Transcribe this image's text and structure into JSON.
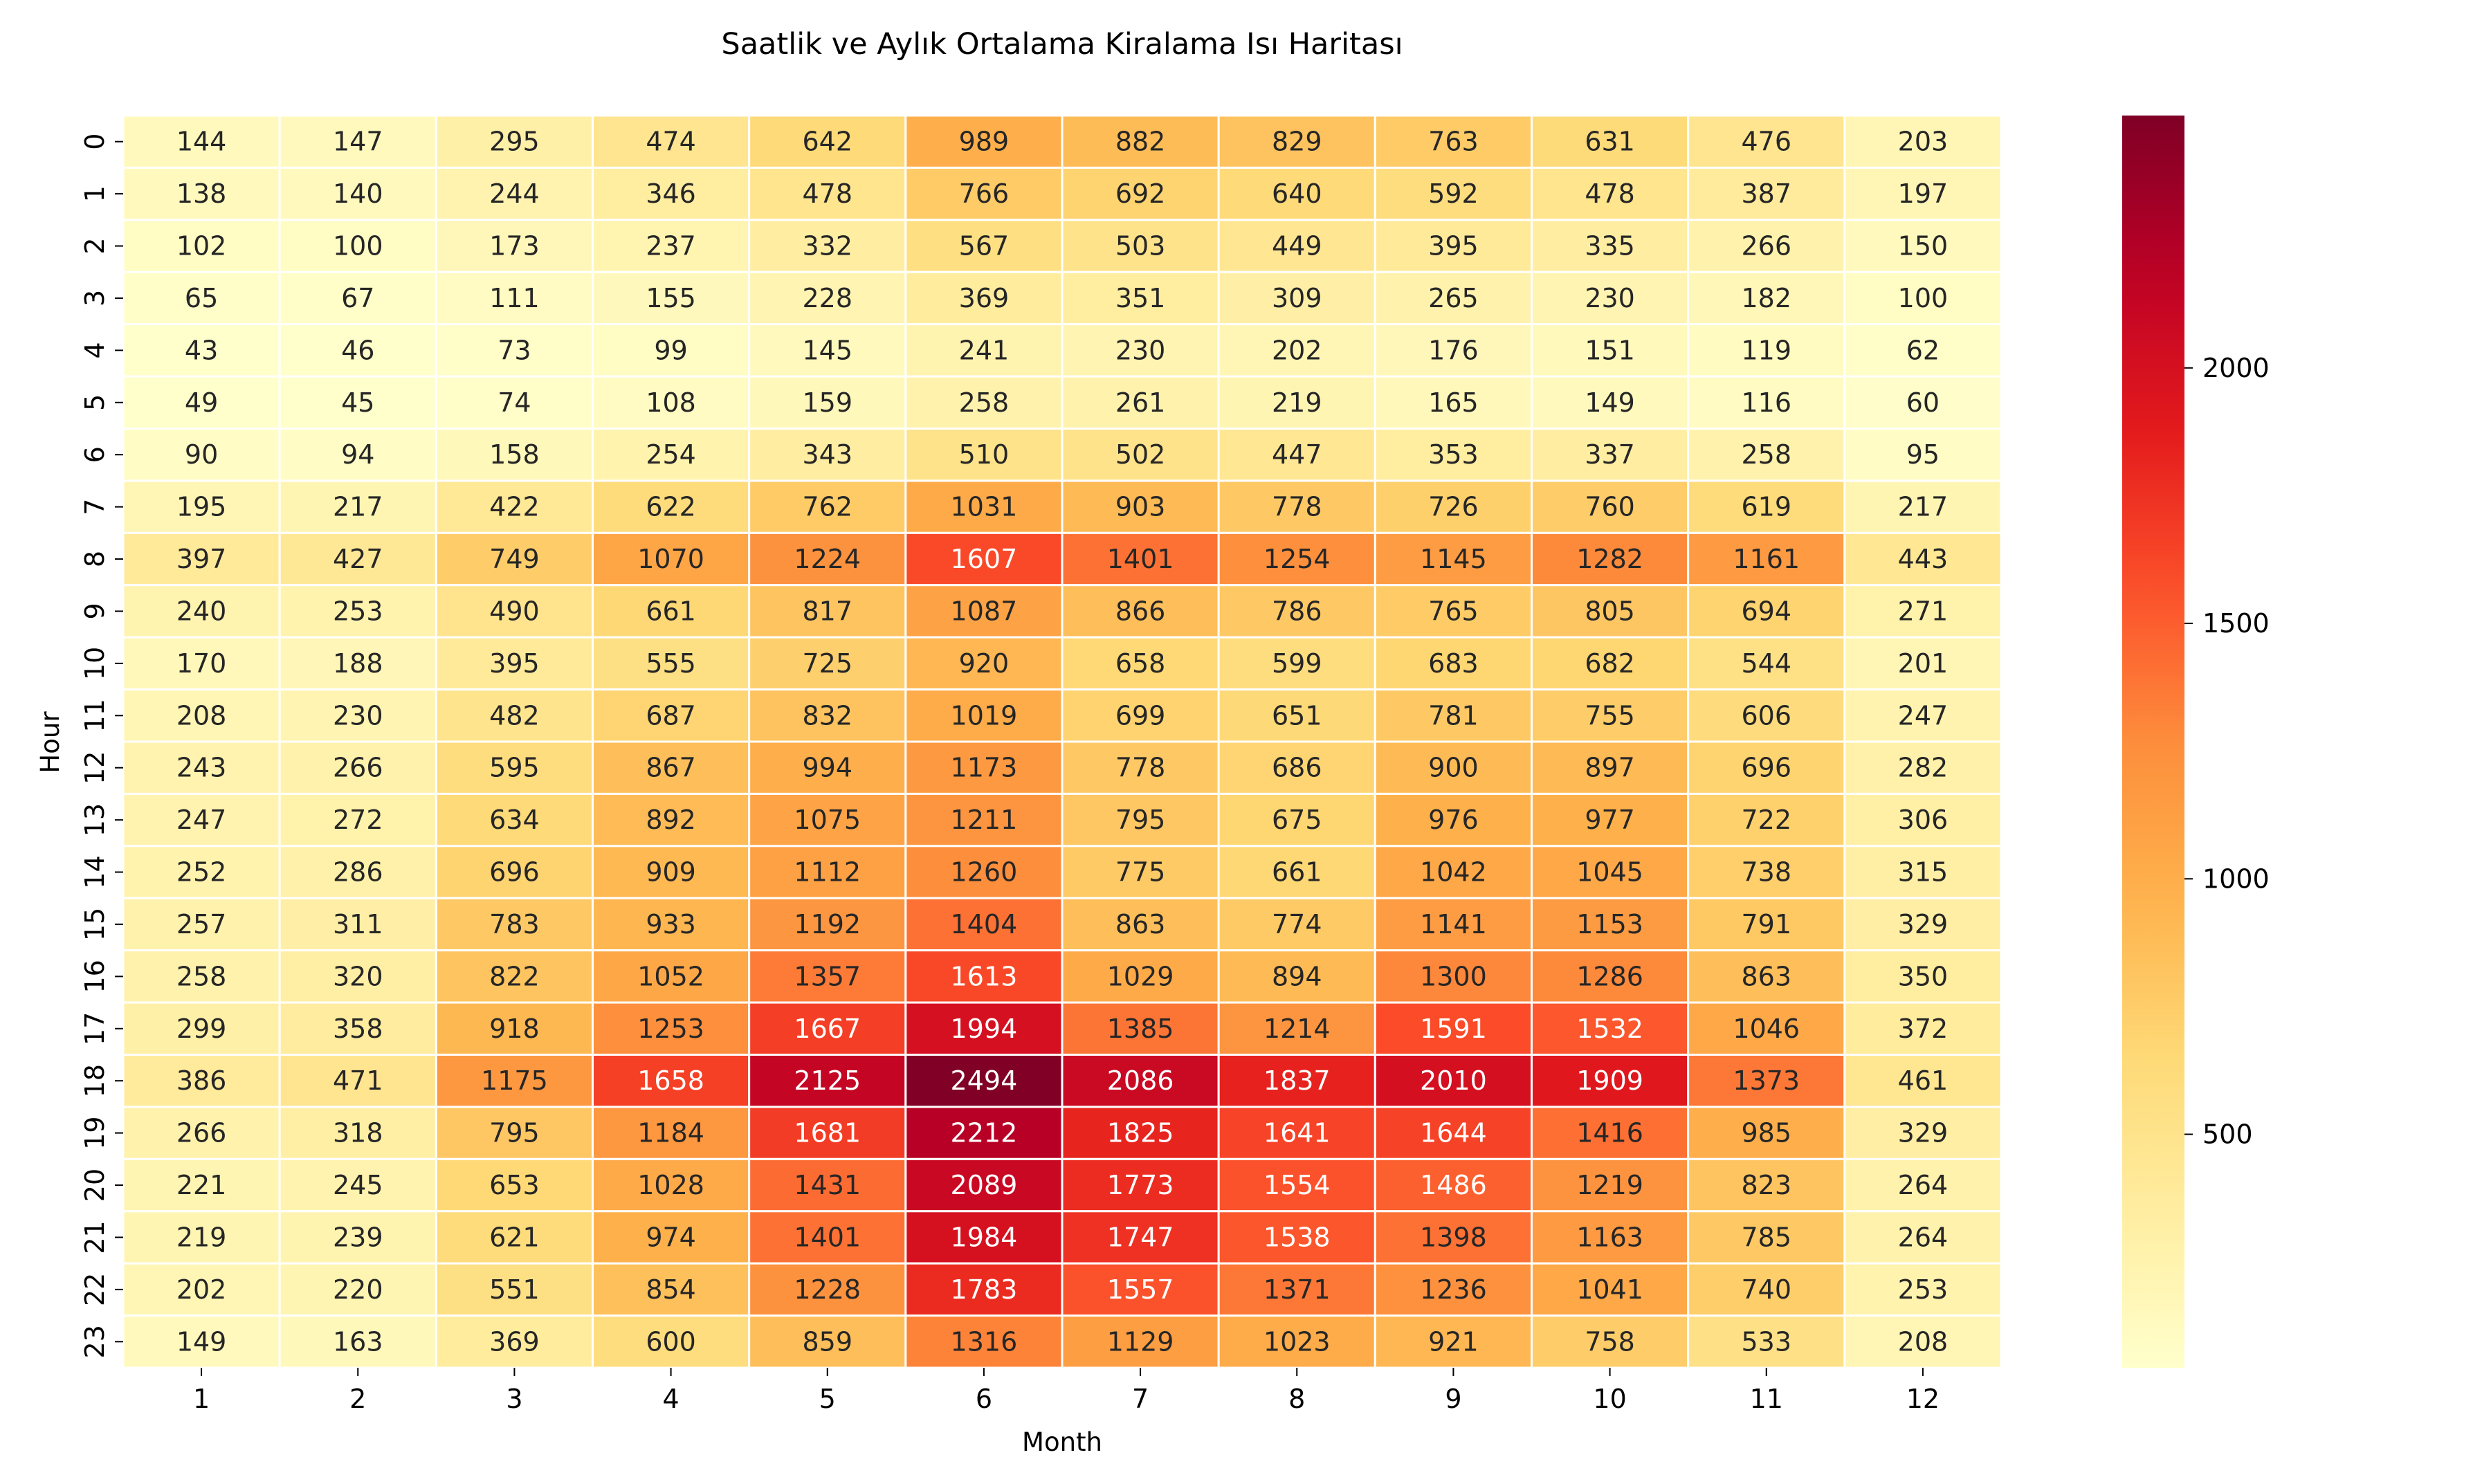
{
  "chart_data": {
    "type": "heatmap",
    "title": "Saatlik ve Aylık Ortalama Kiralama Isı Haritası",
    "xlabel": "Month",
    "ylabel": "Hour",
    "x_categories": [
      "1",
      "2",
      "3",
      "4",
      "5",
      "6",
      "7",
      "8",
      "9",
      "10",
      "11",
      "12"
    ],
    "y_categories": [
      "0",
      "1",
      "2",
      "3",
      "4",
      "5",
      "6",
      "7",
      "8",
      "9",
      "10",
      "11",
      "12",
      "13",
      "14",
      "15",
      "16",
      "17",
      "18",
      "19",
      "20",
      "21",
      "22",
      "23"
    ],
    "values": [
      [
        144,
        147,
        295,
        474,
        642,
        989,
        882,
        829,
        763,
        631,
        476,
        203
      ],
      [
        138,
        140,
        244,
        346,
        478,
        766,
        692,
        640,
        592,
        478,
        387,
        197
      ],
      [
        102,
        100,
        173,
        237,
        332,
        567,
        503,
        449,
        395,
        335,
        266,
        150
      ],
      [
        65,
        67,
        111,
        155,
        228,
        369,
        351,
        309,
        265,
        230,
        182,
        100
      ],
      [
        43,
        46,
        73,
        99,
        145,
        241,
        230,
        202,
        176,
        151,
        119,
        62
      ],
      [
        49,
        45,
        74,
        108,
        159,
        258,
        261,
        219,
        165,
        149,
        116,
        60
      ],
      [
        90,
        94,
        158,
        254,
        343,
        510,
        502,
        447,
        353,
        337,
        258,
        95
      ],
      [
        195,
        217,
        422,
        622,
        762,
        1031,
        903,
        778,
        726,
        760,
        619,
        217
      ],
      [
        397,
        427,
        749,
        1070,
        1224,
        1607,
        1401,
        1254,
        1145,
        1282,
        1161,
        443
      ],
      [
        240,
        253,
        490,
        661,
        817,
        1087,
        866,
        786,
        765,
        805,
        694,
        271
      ],
      [
        170,
        188,
        395,
        555,
        725,
        920,
        658,
        599,
        683,
        682,
        544,
        201
      ],
      [
        208,
        230,
        482,
        687,
        832,
        1019,
        699,
        651,
        781,
        755,
        606,
        247
      ],
      [
        243,
        266,
        595,
        867,
        994,
        1173,
        778,
        686,
        900,
        897,
        696,
        282
      ],
      [
        247,
        272,
        634,
        892,
        1075,
        1211,
        795,
        675,
        976,
        977,
        722,
        306
      ],
      [
        252,
        286,
        696,
        909,
        1112,
        1260,
        775,
        661,
        1042,
        1045,
        738,
        315
      ],
      [
        257,
        311,
        783,
        933,
        1192,
        1404,
        863,
        774,
        1141,
        1153,
        791,
        329
      ],
      [
        258,
        320,
        822,
        1052,
        1357,
        1613,
        1029,
        894,
        1300,
        1286,
        863,
        350
      ],
      [
        299,
        358,
        918,
        1253,
        1667,
        1994,
        1385,
        1214,
        1591,
        1532,
        1046,
        372
      ],
      [
        386,
        471,
        1175,
        1658,
        2125,
        2494,
        2086,
        1837,
        2010,
        1909,
        1373,
        461
      ],
      [
        266,
        318,
        795,
        1184,
        1681,
        2212,
        1825,
        1641,
        1644,
        1416,
        985,
        329
      ],
      [
        221,
        245,
        653,
        1028,
        1431,
        2089,
        1773,
        1554,
        1486,
        1219,
        823,
        264
      ],
      [
        219,
        239,
        621,
        974,
        1401,
        1984,
        1747,
        1538,
        1398,
        1163,
        785,
        264
      ],
      [
        202,
        220,
        551,
        854,
        1228,
        1783,
        1557,
        1371,
        1236,
        1041,
        740,
        253
      ],
      [
        149,
        163,
        369,
        600,
        859,
        1316,
        1129,
        1023,
        921,
        758,
        533,
        208
      ]
    ],
    "colorbar": {
      "colormap": "YlOrRd",
      "vmin": 43,
      "vmax": 2494,
      "ticks": [
        500,
        1000,
        1500,
        2000
      ]
    },
    "cell_gridlines": "white",
    "annotations": "cell values",
    "text_colors": {
      "dark": "#262626",
      "light": "#ffffff"
    }
  }
}
